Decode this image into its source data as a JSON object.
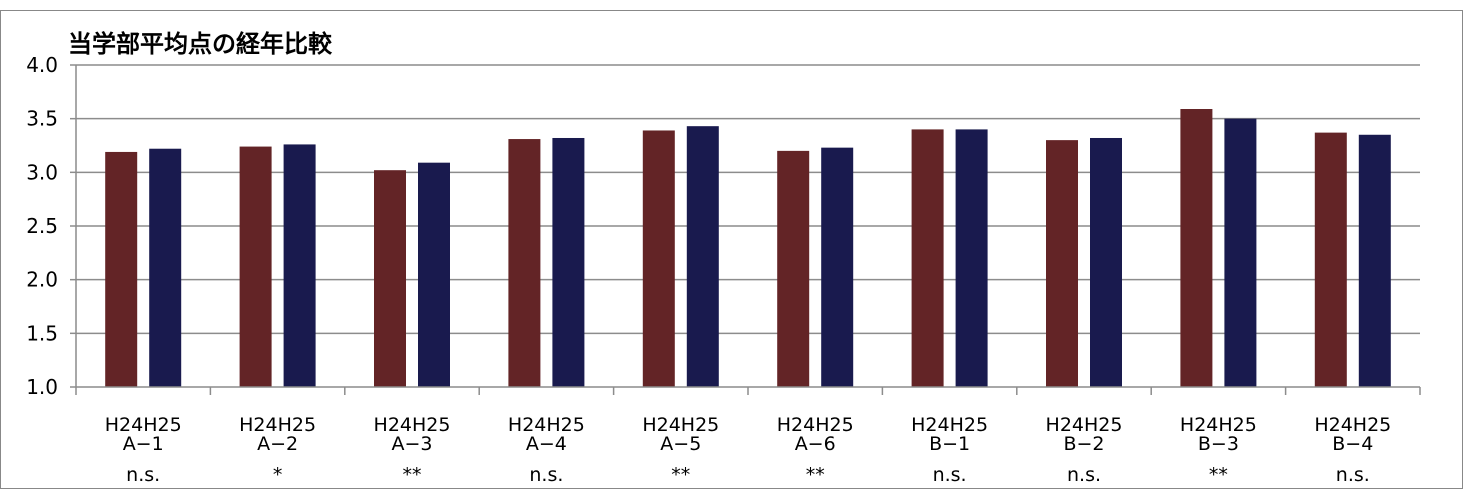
{
  "chart_data": {
    "type": "bar",
    "title": "当学部平均点の経年比較",
    "xlabel": "",
    "ylabel": "",
    "ylim": [
      1.0,
      4.0
    ],
    "yticks": [
      "1.0",
      "1.5",
      "2.0",
      "2.5",
      "3.0",
      "3.5",
      "4.0"
    ],
    "grid": true,
    "legend": "none",
    "series": [
      {
        "name": "H24",
        "color": "#632426",
        "values": [
          3.19,
          3.24,
          3.02,
          3.31,
          3.39,
          3.2,
          3.4,
          3.3,
          3.59,
          3.37
        ]
      },
      {
        "name": "H25",
        "color": "#191A4E",
        "values": [
          3.22,
          3.26,
          3.09,
          3.32,
          3.43,
          3.23,
          3.4,
          3.32,
          3.5,
          3.35
        ]
      }
    ],
    "categories": [
      "A−1",
      "A−2",
      "A−3",
      "A−4",
      "A−5",
      "A−6",
      "B−1",
      "B−2",
      "B−3",
      "B−4"
    ],
    "significance": [
      "n.s.",
      "*",
      "**",
      "n.s.",
      "**",
      "**",
      "n.s.",
      "n.s.",
      "**",
      "n.s."
    ]
  }
}
